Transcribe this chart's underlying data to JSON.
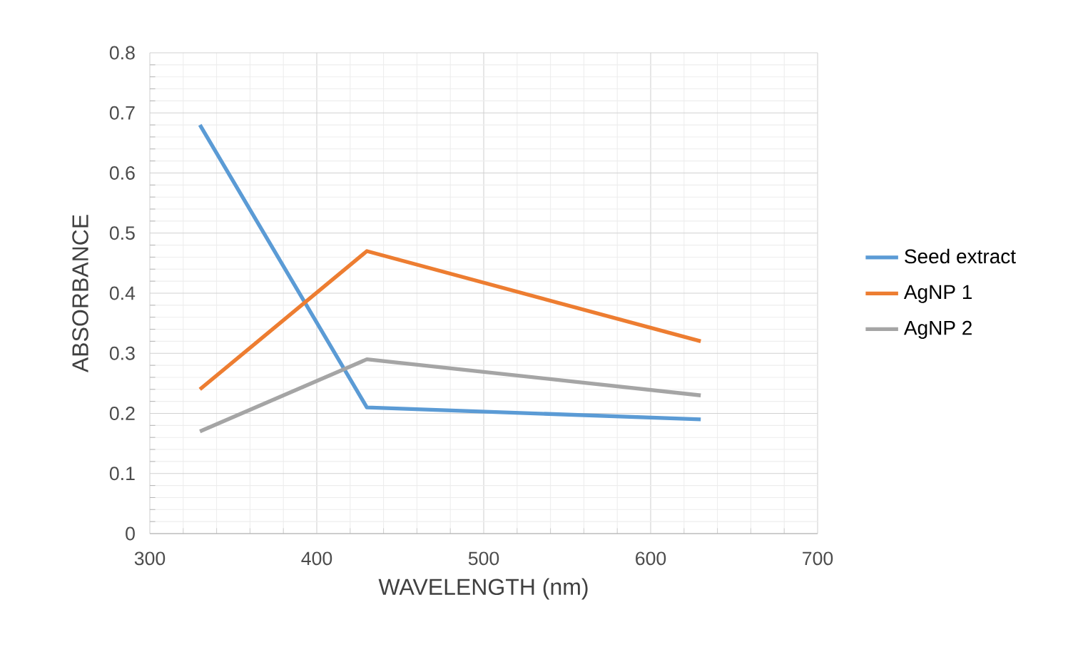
{
  "chart_data": {
    "type": "line",
    "xlabel": "WAVELENGTH (nm)",
    "ylabel": "ABSORBANCE",
    "x": [
      330,
      430,
      630
    ],
    "series": [
      {
        "name": "Seed extract",
        "color": "#5b9bd5",
        "values": [
          0.68,
          0.21,
          0.19
        ]
      },
      {
        "name": "AgNP 1",
        "color": "#ed7d31",
        "values": [
          0.24,
          0.47,
          0.32
        ]
      },
      {
        "name": "AgNP 2",
        "color": "#a5a5a5",
        "values": [
          0.17,
          0.29,
          0.23
        ]
      }
    ],
    "xlim": [
      300,
      700
    ],
    "xticks": [
      300,
      400,
      500,
      600,
      700
    ],
    "ylim": [
      0,
      0.8
    ],
    "yticks": [
      0,
      0.1,
      0.2,
      0.3,
      0.4,
      0.5,
      0.6,
      0.7,
      0.8
    ],
    "grid": true,
    "legend": "right",
    "marker": "none",
    "line_style": "solid"
  }
}
